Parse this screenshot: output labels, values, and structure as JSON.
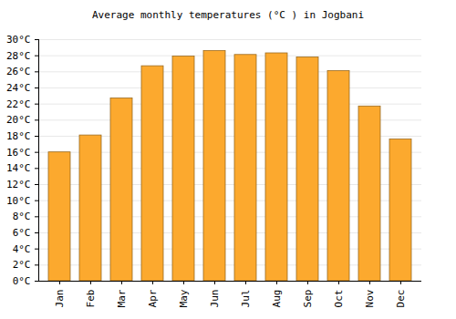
{
  "chart_data": {
    "type": "bar",
    "title": "Average monthly temperatures (°C ) in Jogbani",
    "categories": [
      "Jan",
      "Feb",
      "Mar",
      "Apr",
      "May",
      "Jun",
      "Jul",
      "Aug",
      "Sep",
      "Oct",
      "Nov",
      "Dec"
    ],
    "values": [
      16.0,
      18.1,
      22.7,
      26.7,
      27.9,
      28.6,
      28.1,
      28.3,
      27.8,
      26.1,
      21.7,
      17.6
    ],
    "color": "#fca92e",
    "ylim": [
      0,
      30
    ],
    "yticks": [
      {
        "value": 0,
        "label": "0°C"
      },
      {
        "value": 2,
        "label": "2°C"
      },
      {
        "value": 4,
        "label": "4°C"
      },
      {
        "value": 6,
        "label": "6°C"
      },
      {
        "value": 8,
        "label": "8°C"
      },
      {
        "value": 10,
        "label": "10°C"
      },
      {
        "value": 12,
        "label": "12°C"
      },
      {
        "value": 14,
        "label": "14°C"
      },
      {
        "value": 16,
        "label": "16°C"
      },
      {
        "value": 18,
        "label": "18°C"
      },
      {
        "value": 20,
        "label": "20°C"
      },
      {
        "value": 22,
        "label": "22°C"
      },
      {
        "value": 24,
        "label": "24°C"
      },
      {
        "value": 26,
        "label": "26°C"
      },
      {
        "value": 28,
        "label": "28°C"
      },
      {
        "value": 30,
        "label": "30°C"
      }
    ],
    "grid": true
  }
}
